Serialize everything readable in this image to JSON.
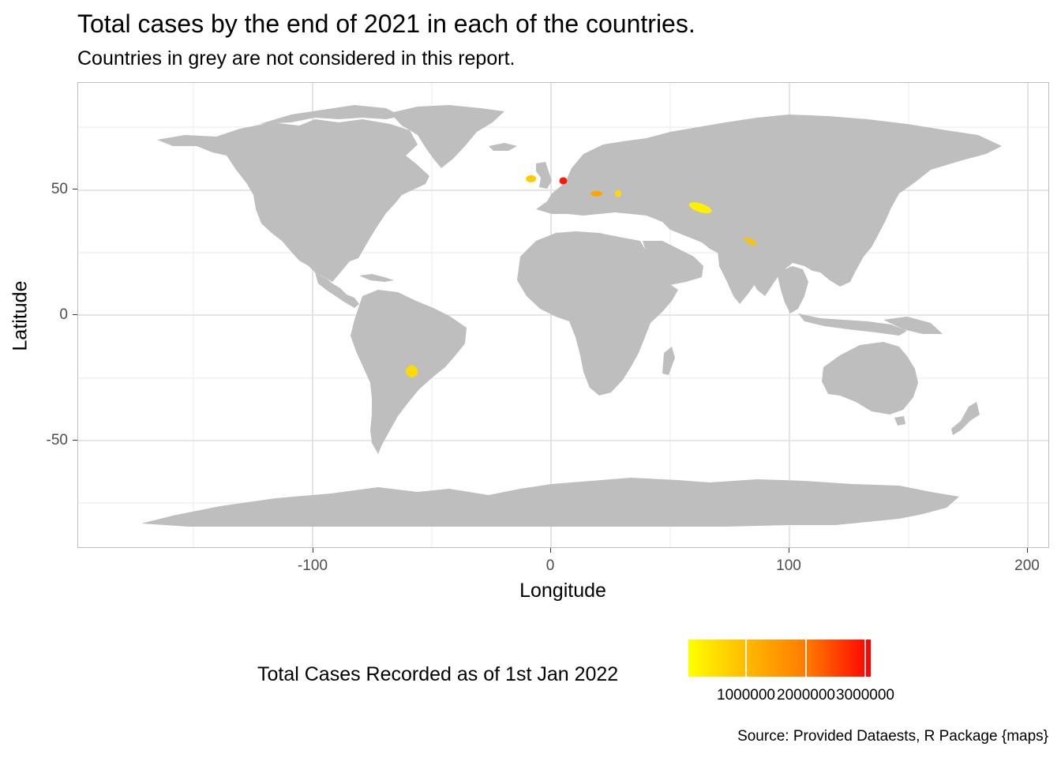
{
  "title": "Total cases by the end of 2021 in each of the countries.",
  "subtitle": "Countries in grey are not considered in this report.",
  "axes": {
    "x": {
      "label": "Longitude",
      "ticks": [
        "-100",
        "0",
        "100",
        "200"
      ],
      "range": [
        -198,
        209
      ]
    },
    "y": {
      "label": "Latitude",
      "ticks": [
        "50",
        "0",
        "-50"
      ],
      "range": [
        -93,
        91
      ]
    }
  },
  "legend": {
    "title": "Total Cases Recorded as of 1st Jan 2022",
    "labels": [
      "1000000",
      "2000000",
      "3000000"
    ],
    "colors": {
      "low": "#ffff00",
      "mid": "#ffa500",
      "high": "#ff0000"
    }
  },
  "caption": "Source: Provided Dataests, R Package {maps}",
  "colors": {
    "land": "#bebebe",
    "grid_major": "#dedede",
    "grid_minor": "#eeeeee",
    "panel_border": "#bdbdbd"
  },
  "chart_data": {
    "type": "choropleth",
    "highlighted_regions": [
      {
        "region": "Ireland",
        "lon": -8,
        "lat": 53,
        "approx_cases": 700000
      },
      {
        "region": "Netherlands",
        "lon": 5.5,
        "lat": 52.2,
        "approx_cases": 3100000
      },
      {
        "region": "Hungary",
        "lon": 19.5,
        "lat": 47.1,
        "approx_cases": 1200000
      },
      {
        "region": "Moldova",
        "lon": 28.5,
        "lat": 47.2,
        "approx_cases": 500000
      },
      {
        "region": "Uzbekistan",
        "lon": 63,
        "lat": 41.5,
        "approx_cases": 200000
      },
      {
        "region": "Nepal",
        "lon": 84,
        "lat": 28.2,
        "approx_cases": 800000
      },
      {
        "region": "Paraguay",
        "lon": -58,
        "lat": -23.3,
        "approx_cases": 500000
      }
    ],
    "grid": true
  }
}
